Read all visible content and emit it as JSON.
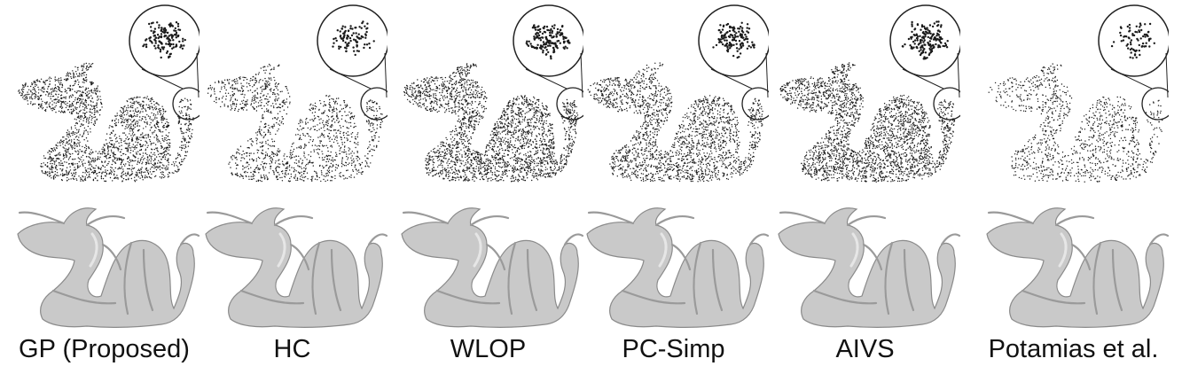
{
  "figure": {
    "methods": [
      {
        "key": "gp",
        "label": "GP (Proposed)",
        "density": 0.85
      },
      {
        "key": "hc",
        "label": "HC",
        "density": 0.55
      },
      {
        "key": "wlop",
        "label": "WLOP",
        "density": 1.0
      },
      {
        "key": "pcsimp",
        "label": "PC-Simp",
        "density": 0.8
      },
      {
        "key": "aivs",
        "label": "AIVS",
        "density": 1.0
      },
      {
        "key": "potamias",
        "label": "Potamias et al.",
        "density": 0.45
      }
    ],
    "colors": {
      "point": "#1a1a1a",
      "mesh_fill": "#c9c9c9",
      "mesh_stroke": "#8a8a8a",
      "circle": "#222222"
    }
  }
}
